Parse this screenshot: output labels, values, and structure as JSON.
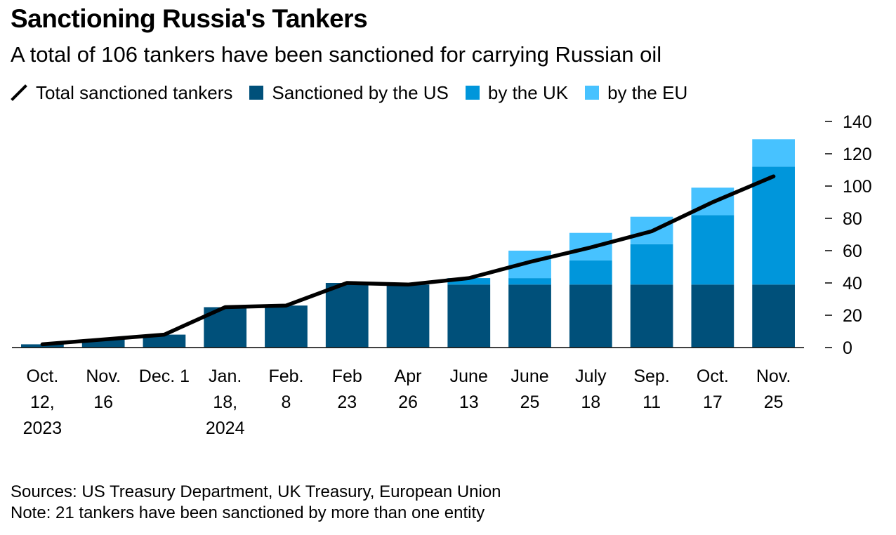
{
  "title": "Sanctioning Russia's Tankers",
  "subtitle": "A total of 106 tankers have been sanctioned for carrying Russian oil",
  "legend": {
    "line": "Total sanctioned tankers",
    "us": "Sanctioned by the US",
    "uk": "by the UK",
    "eu": "by the EU"
  },
  "colors": {
    "us": "#00507A",
    "uk": "#0096DB",
    "eu": "#47C2FF",
    "line": "#000000"
  },
  "footer": {
    "sources": "Sources: US Treasury Department, UK Treasury, European Union",
    "note": "Note: 21 tankers have been sanctioned by more than one entity"
  },
  "chart_data": {
    "type": "bar",
    "stacked": true,
    "categories": [
      [
        "Oct.",
        "12,",
        "2023"
      ],
      [
        "Nov.",
        "16"
      ],
      [
        "Dec. 1"
      ],
      [
        "Jan.",
        "18,",
        "2024"
      ],
      [
        "Feb.",
        "8"
      ],
      [
        "Feb",
        "23"
      ],
      [
        "Apr",
        "26"
      ],
      [
        "June",
        "13"
      ],
      [
        "June",
        "25"
      ],
      [
        "July",
        "18"
      ],
      [
        "Sep.",
        "11"
      ],
      [
        "Oct.",
        "17"
      ],
      [
        "Nov.",
        "25"
      ]
    ],
    "series": [
      {
        "name": "Sanctioned by the US",
        "color": "#00507A",
        "values": [
          2,
          5,
          8,
          25,
          26,
          40,
          39,
          39,
          39,
          39,
          39,
          39,
          39
        ]
      },
      {
        "name": "by the UK",
        "color": "#0096DB",
        "values": [
          0,
          0,
          0,
          0,
          0,
          0,
          0,
          4,
          4,
          15,
          25,
          43,
          73
        ]
      },
      {
        "name": "by the EU",
        "color": "#47C2FF",
        "values": [
          0,
          0,
          0,
          0,
          0,
          0,
          0,
          0,
          17,
          17,
          17,
          17,
          17
        ]
      }
    ],
    "line": {
      "name": "Total sanctioned tankers",
      "values": [
        2,
        5,
        8,
        25,
        26,
        40,
        39,
        43,
        53,
        62,
        72,
        90,
        106
      ]
    },
    "ylim": [
      0,
      140
    ],
    "yticks": [
      0,
      20,
      40,
      60,
      80,
      100,
      120,
      140
    ],
    "yaxis_position": "right",
    "grid": false,
    "legend_position": "top-left"
  }
}
